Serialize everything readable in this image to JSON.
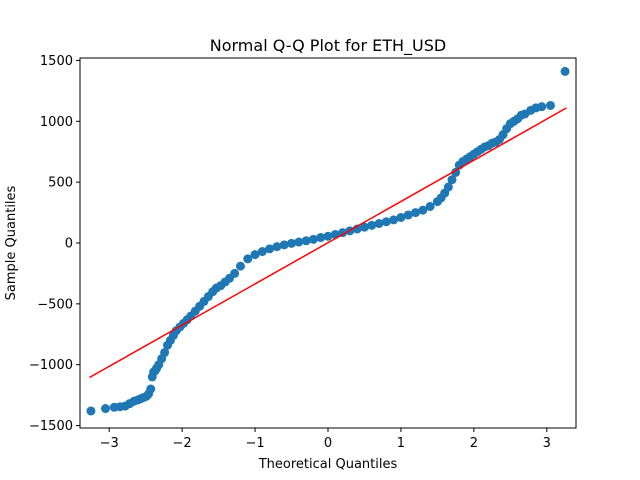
{
  "chart_data": {
    "type": "scatter",
    "title": "Normal Q-Q Plot for ETH_USD",
    "xlabel": "Theoretical Quantiles",
    "ylabel": "Sample Quantiles",
    "xlim": [
      -3.4,
      3.4
    ],
    "ylim": [
      -1520,
      1520
    ],
    "xticks": [
      -3,
      -2,
      -1,
      0,
      1,
      2,
      3
    ],
    "xtick_labels": [
      "−3",
      "−2",
      "−1",
      "0",
      "1",
      "2",
      "3"
    ],
    "yticks": [
      -1500,
      -1000,
      -500,
      0,
      500,
      1000,
      1500
    ],
    "ytick_labels": [
      "−1500",
      "−1000",
      "−500",
      "0",
      "500",
      "1000",
      "1500"
    ],
    "grid": false,
    "colors": {
      "points": "#1f77b4",
      "reference_line": "#ff0000"
    },
    "series": [
      {
        "type": "scatter",
        "x": [
          -3.25,
          -3.05,
          -2.93,
          -2.85,
          -2.78,
          -2.72,
          -2.66,
          -2.61,
          -2.57,
          -2.53,
          -2.49,
          -2.46,
          -2.43,
          -2.41,
          -2.39,
          -2.37,
          -2.35,
          -2.32,
          -2.28,
          -2.24,
          -2.2,
          -2.16,
          -2.12,
          -2.08,
          -2.03,
          -1.98,
          -1.93,
          -1.88,
          -1.82,
          -1.76,
          -1.7,
          -1.64,
          -1.58,
          -1.53,
          -1.47,
          -1.41,
          -1.35,
          -1.28,
          -1.2,
          -1.1,
          -1.0,
          -0.9,
          -0.8,
          -0.7,
          -0.6,
          -0.5,
          -0.4,
          -0.3,
          -0.2,
          -0.1,
          0.0,
          0.1,
          0.2,
          0.3,
          0.4,
          0.5,
          0.6,
          0.7,
          0.8,
          0.9,
          1.0,
          1.1,
          1.2,
          1.3,
          1.4,
          1.5,
          1.55,
          1.6,
          1.65,
          1.7,
          1.75,
          1.8,
          1.85,
          1.9,
          1.95,
          2.0,
          2.05,
          2.1,
          2.15,
          2.2,
          2.25,
          2.3,
          2.35,
          2.4,
          2.45,
          2.5,
          2.55,
          2.6,
          2.65,
          2.7,
          2.78,
          2.85,
          2.93,
          3.05,
          3.25
        ],
        "y": [
          -1380,
          -1360,
          -1350,
          -1345,
          -1340,
          -1320,
          -1300,
          -1290,
          -1280,
          -1270,
          -1260,
          -1240,
          -1200,
          -1100,
          -1060,
          -1050,
          -1030,
          -1000,
          -950,
          -900,
          -840,
          -800,
          -760,
          -720,
          -690,
          -660,
          -630,
          -600,
          -560,
          -520,
          -480,
          -440,
          -400,
          -370,
          -350,
          -320,
          -290,
          -250,
          -190,
          -130,
          -95,
          -70,
          -48,
          -30,
          -15,
          -3,
          8,
          18,
          30,
          45,
          55,
          70,
          85,
          100,
          115,
          130,
          145,
          160,
          175,
          190,
          210,
          230,
          250,
          270,
          300,
          340,
          370,
          410,
          460,
          520,
          580,
          640,
          670,
          690,
          710,
          730,
          750,
          770,
          790,
          800,
          820,
          830,
          850,
          890,
          940,
          980,
          1000,
          1020,
          1050,
          1060,
          1090,
          1110,
          1120,
          1130,
          1410
        ]
      },
      {
        "type": "line",
        "x": [
          -3.27,
          3.27
        ],
        "y": [
          -1105,
          1110
        ]
      }
    ]
  }
}
